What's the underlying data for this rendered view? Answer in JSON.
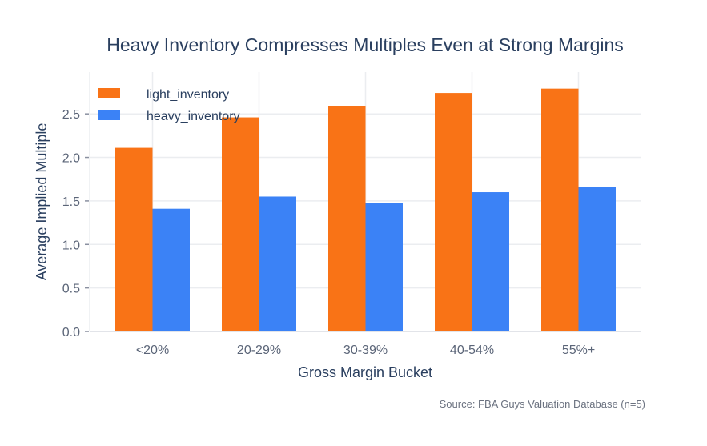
{
  "chart_data": {
    "type": "bar",
    "title": "Heavy Inventory Compresses Multiples Even at Strong Margins",
    "xlabel": "Gross Margin Bucket",
    "ylabel": "Average Implied Multiple",
    "categories": [
      "<20%",
      "20-29%",
      "30-39%",
      "40-54%",
      "55%+"
    ],
    "series": [
      {
        "name": "light_inventory",
        "color": "#f97316",
        "values": [
          2.11,
          2.46,
          2.59,
          2.74,
          2.79
        ]
      },
      {
        "name": "heavy_inventory",
        "color": "#3b82f6",
        "values": [
          1.41,
          1.55,
          1.48,
          1.6,
          1.66
        ]
      }
    ],
    "yticks": [
      "0.0",
      "0.5",
      "1.0",
      "1.5",
      "2.0",
      "2.5"
    ],
    "ylim": [
      0,
      2.98
    ],
    "grid": true,
    "legend_position": "top-left",
    "annotation": "Source: FBA Guys Valuation Database (n=5)"
  }
}
